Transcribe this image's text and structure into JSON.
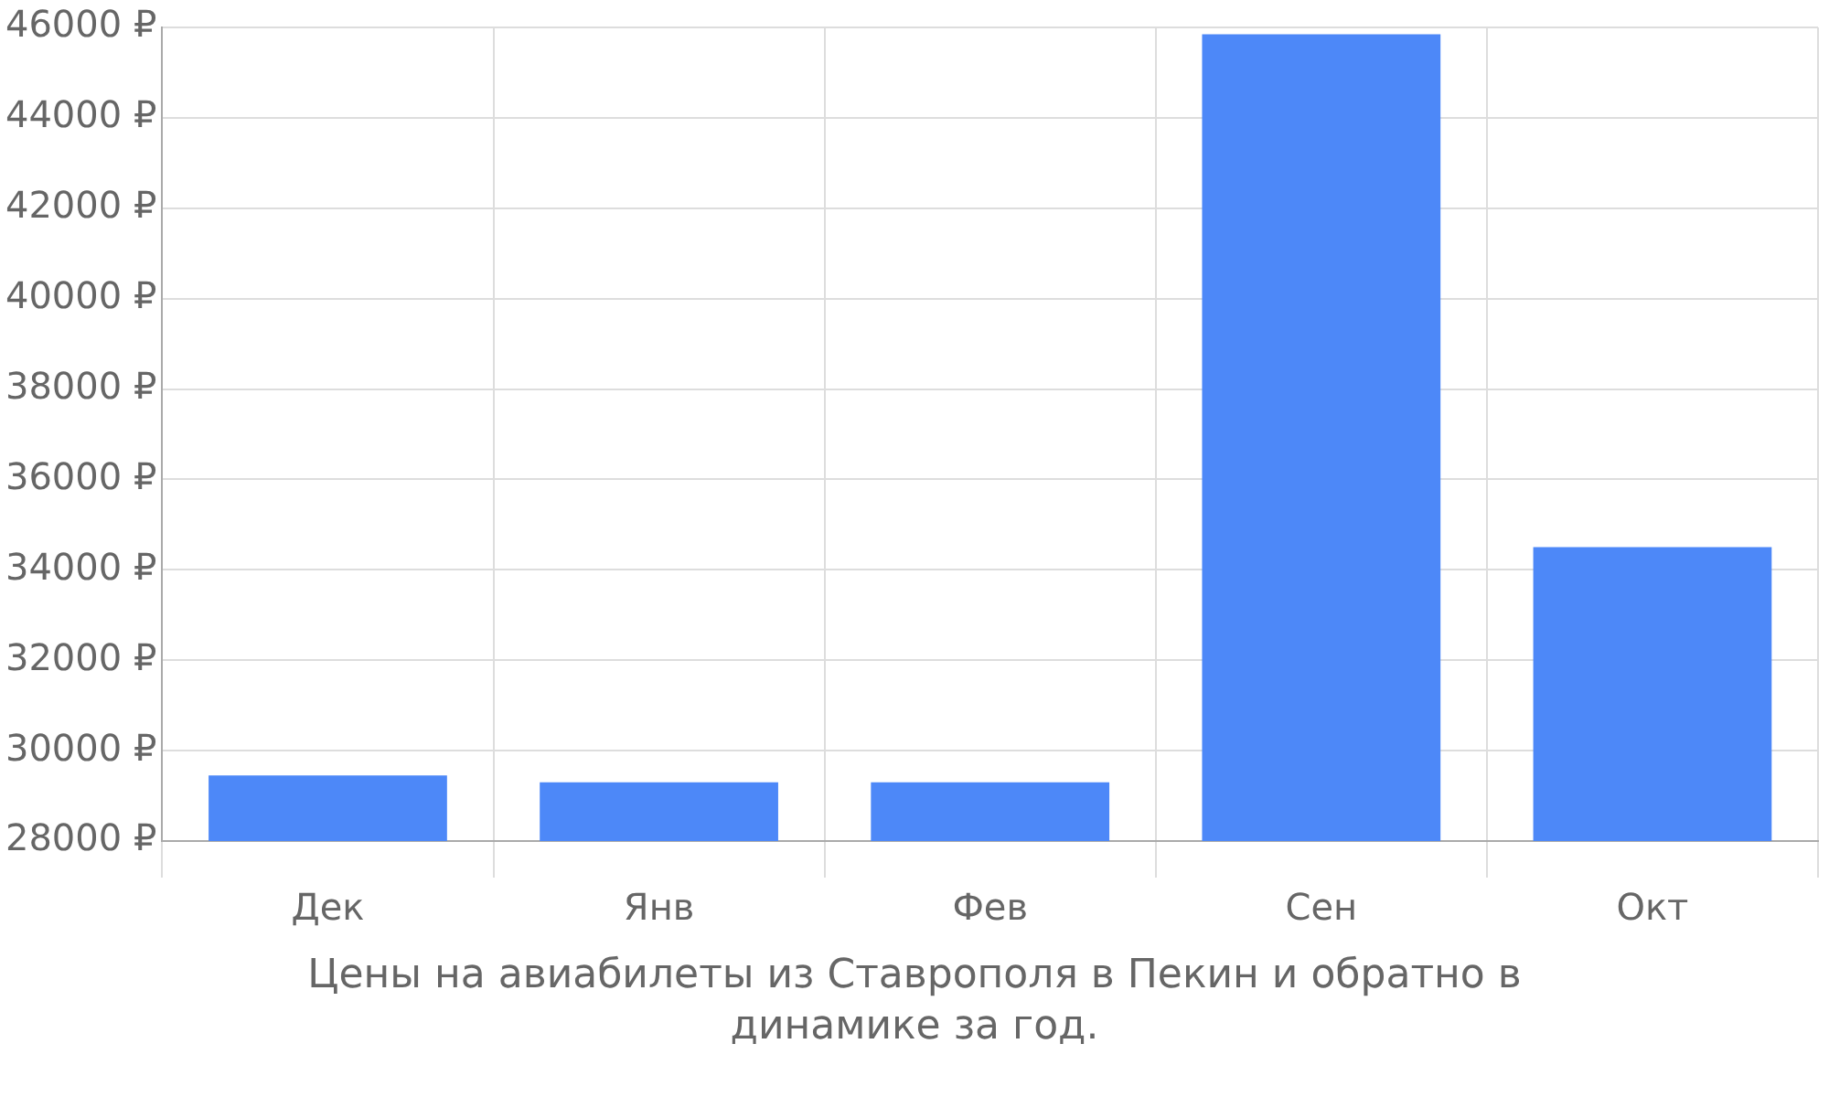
{
  "chart_data": {
    "type": "bar",
    "title": "Цены на авиабилеты из Ставрополя в Пекин и обратно в динамике за год.",
    "categories": [
      "Дек",
      "Янв",
      "Фев",
      "Сен",
      "Окт"
    ],
    "values": [
      29450,
      29300,
      29300,
      45850,
      34500
    ],
    "color": "#4d88f8",
    "ylim": [
      28000,
      46000
    ],
    "yticks": [
      {
        "value": 28000,
        "label": "28000 ₽"
      },
      {
        "value": 30000,
        "label": "30000 ₽"
      },
      {
        "value": 32000,
        "label": "32000 ₽"
      },
      {
        "value": 34000,
        "label": "34000 ₽"
      },
      {
        "value": 36000,
        "label": "36000 ₽"
      },
      {
        "value": 38000,
        "label": "38000 ₽"
      },
      {
        "value": 40000,
        "label": "40000 ₽"
      },
      {
        "value": 42000,
        "label": "42000 ₽"
      },
      {
        "value": 44000,
        "label": "44000 ₽"
      },
      {
        "value": 46000,
        "label": "46000 ₽"
      }
    ],
    "grid": true,
    "legend": false
  }
}
